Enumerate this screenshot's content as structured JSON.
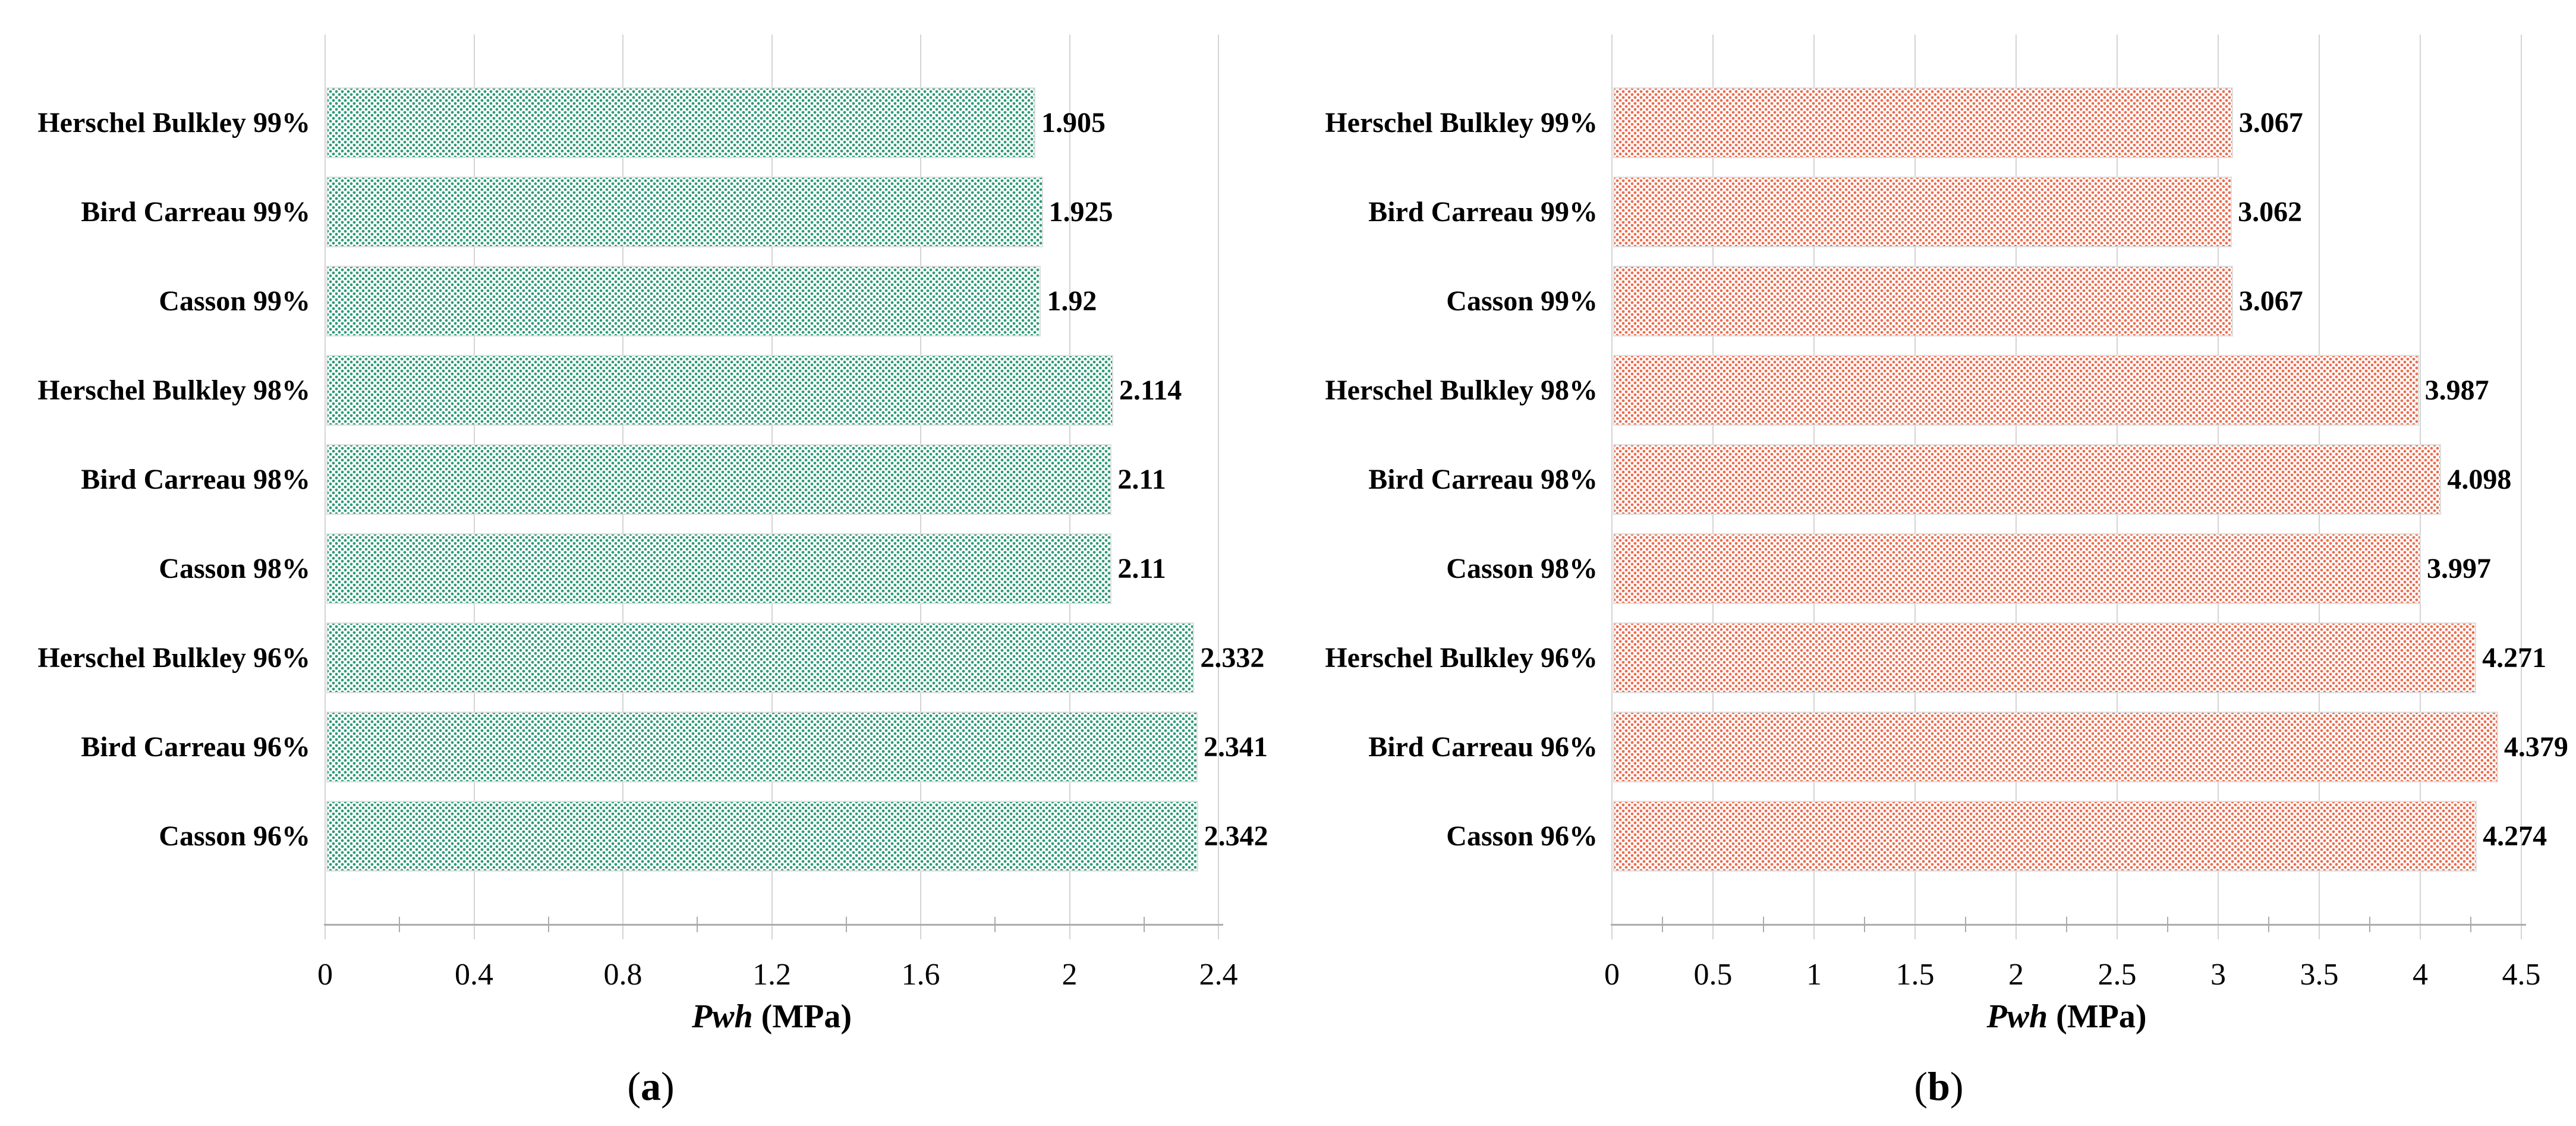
{
  "figure": {
    "background": "#FFFFFF",
    "grid_color": "#D4D4D4",
    "axis_color": "#ACACAC",
    "bar_border_color": "#DFDFDF",
    "text_color": "#000000"
  },
  "chart_data": [
    {
      "type": "bar",
      "orientation": "horizontal",
      "panel_caption": {
        "open": "(",
        "letter": "a",
        "close": ")"
      },
      "xlabel_italic": "Pwh",
      "xlabel_unit": " (MPa)",
      "xlim": [
        0,
        2.4
      ],
      "x_ticks": [
        0,
        0.4,
        0.8,
        1.2,
        1.6,
        2,
        2.4
      ],
      "x_tick_labels": [
        "0",
        "0.4",
        "0.8",
        "1.2",
        "1.6",
        "2",
        "2.4"
      ],
      "x_minor_step": 0.2,
      "grid": true,
      "legend": "none",
      "bar_color": "#2E9B78",
      "categories": [
        "Herschel Bulkley 99%",
        "Bird Carreau 99%",
        "Casson 99%",
        "Herschel Bulkley 98%",
        "Bird Carreau 98%",
        "Casson 98%",
        "Herschel Bulkley 96%",
        "Bird Carreau 96%",
        "Casson 96%"
      ],
      "values": [
        1.905,
        1.925,
        1.92,
        2.114,
        2.11,
        2.11,
        2.332,
        2.341,
        2.342
      ],
      "value_labels": [
        "1.905",
        "1.925",
        "1.92",
        "2.114",
        "2.11",
        "2.11",
        "2.332",
        "2.341",
        "2.342"
      ]
    },
    {
      "type": "bar",
      "orientation": "horizontal",
      "panel_caption": {
        "open": "(",
        "letter": "b",
        "close": ")"
      },
      "xlabel_italic": "Pwh",
      "xlabel_unit": " (MPa)",
      "xlim": [
        0,
        4.5
      ],
      "x_ticks": [
        0,
        0.5,
        1,
        1.5,
        2,
        2.5,
        3,
        3.5,
        4,
        4.5
      ],
      "x_tick_labels": [
        "0",
        "0.5",
        "1",
        "1.5",
        "2",
        "2.5",
        "3",
        "3.5",
        "4",
        "4.5"
      ],
      "x_minor_step": 0.25,
      "grid": true,
      "legend": "none",
      "bar_color": "#EB6D4F",
      "categories": [
        "Herschel Bulkley 99%",
        "Bird Carreau 99%",
        "Casson 99%",
        "Herschel Bulkley 98%",
        "Bird Carreau 98%",
        "Casson 98%",
        "Herschel Bulkley 96%",
        "Bird Carreau 96%",
        "Casson 96%"
      ],
      "values": [
        3.067,
        3.062,
        3.067,
        3.987,
        4.098,
        3.997,
        4.271,
        4.379,
        4.274
      ],
      "value_labels": [
        "3.067",
        "3.062",
        "3.067",
        "3.987",
        "4.098",
        "3.997",
        "4.271",
        "4.379",
        "4.274"
      ]
    }
  ]
}
